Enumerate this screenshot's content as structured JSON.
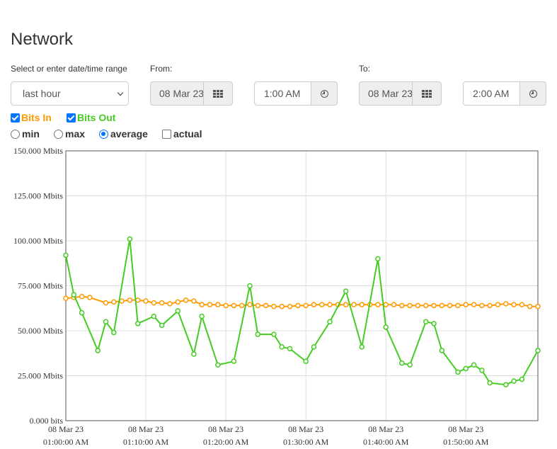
{
  "page": {
    "title": "Network"
  },
  "range": {
    "label": "Select or enter date/time range",
    "selected": "last hour",
    "from_label": "From:",
    "from_date": "08 Mar 23",
    "from_time": "1:00 AM",
    "to_label": "To:",
    "to_date": "08 Mar 23",
    "to_time": "2:00 AM"
  },
  "toggles": {
    "bits_in": "Bits In",
    "bits_out": "Bits Out",
    "bits_in_color": "#ff9900",
    "bits_out_color": "#44cc22"
  },
  "modes": {
    "min": "min",
    "max": "max",
    "average": "average",
    "actual": "actual",
    "selected": "average"
  },
  "icons": {
    "date": "calendar-grid-icon",
    "time": "clock-icon"
  },
  "chart_data": {
    "type": "line",
    "title": "",
    "xlabel": "",
    "ylabel": "",
    "ylim": [
      0,
      150
    ],
    "y_unit": "Mbits",
    "yticks": [
      "0.000 bits",
      "25.000 Mbits",
      "50.000 Mbits",
      "75.000 Mbits",
      "100.000 Mbits",
      "125.000 Mbits",
      "150.000 Mbits"
    ],
    "xticks": [
      {
        "date": "08 Mar 23",
        "time": "01:00:00 AM",
        "minute": 0
      },
      {
        "date": "08 Mar 23",
        "time": "01:10:00 AM",
        "minute": 10
      },
      {
        "date": "08 Mar 23",
        "time": "01:20:00 AM",
        "minute": 20
      },
      {
        "date": "08 Mar 23",
        "time": "01:30:00 AM",
        "minute": 30
      },
      {
        "date": "08 Mar 23",
        "time": "01:40:00 AM",
        "minute": 40
      },
      {
        "date": "08 Mar 23",
        "time": "01:50:00 AM",
        "minute": 50
      }
    ],
    "xlim": [
      0,
      59
    ],
    "grid": true,
    "series": [
      {
        "name": "Bits In",
        "color": "#ff9900",
        "points": [
          [
            0,
            68
          ],
          [
            1,
            68.5
          ],
          [
            2,
            69
          ],
          [
            3,
            68.5
          ],
          [
            5,
            65.5
          ],
          [
            6,
            66
          ],
          [
            7,
            66.5
          ],
          [
            8,
            67
          ],
          [
            9,
            67
          ],
          [
            10,
            66.5
          ],
          [
            11,
            65.5
          ],
          [
            12,
            65.5
          ],
          [
            13,
            65
          ],
          [
            14,
            66
          ],
          [
            15,
            67
          ],
          [
            16,
            66.5
          ],
          [
            17,
            64.5
          ],
          [
            18,
            64.5
          ],
          [
            19,
            64.5
          ],
          [
            20,
            64
          ],
          [
            21,
            64
          ],
          [
            22,
            64
          ],
          [
            23,
            64.5
          ],
          [
            24,
            64
          ],
          [
            25,
            64
          ],
          [
            26,
            63.5
          ],
          [
            27,
            63.5
          ],
          [
            28,
            63.5
          ],
          [
            29,
            64
          ],
          [
            30,
            64
          ],
          [
            31,
            64.5
          ],
          [
            32,
            64.5
          ],
          [
            33,
            64.5
          ],
          [
            34,
            64.5
          ],
          [
            35,
            64.5
          ],
          [
            36,
            64.5
          ],
          [
            37,
            64.5
          ],
          [
            38,
            64.5
          ],
          [
            39,
            64.5
          ],
          [
            40,
            64.5
          ],
          [
            41,
            64.5
          ],
          [
            42,
            64
          ],
          [
            43,
            64
          ],
          [
            44,
            64
          ],
          [
            45,
            64
          ],
          [
            46,
            64
          ],
          [
            47,
            64
          ],
          [
            48,
            64
          ],
          [
            49,
            64
          ],
          [
            50,
            64.5
          ],
          [
            51,
            64.5
          ],
          [
            52,
            64
          ],
          [
            53,
            64
          ],
          [
            54,
            64.5
          ],
          [
            55,
            65
          ],
          [
            56,
            64.5
          ],
          [
            57,
            64.5
          ],
          [
            58,
            63.5
          ],
          [
            59,
            63.5
          ]
        ]
      },
      {
        "name": "Bits Out",
        "color": "#44cc22",
        "points": [
          [
            0,
            92
          ],
          [
            1,
            70
          ],
          [
            2,
            60
          ],
          [
            4,
            39
          ],
          [
            5,
            55
          ],
          [
            6,
            49
          ],
          [
            8,
            101
          ],
          [
            9,
            54
          ],
          [
            11,
            58
          ],
          [
            12,
            53
          ],
          [
            14,
            61
          ],
          [
            16,
            37
          ],
          [
            17,
            58
          ],
          [
            19,
            31
          ],
          [
            21,
            33
          ],
          [
            23,
            75
          ],
          [
            24,
            48
          ],
          [
            26,
            48
          ],
          [
            27,
            41
          ],
          [
            28,
            40
          ],
          [
            30,
            33
          ],
          [
            31,
            41
          ],
          [
            33,
            55
          ],
          [
            35,
            72
          ],
          [
            37,
            41
          ],
          [
            39,
            90
          ],
          [
            40,
            52
          ],
          [
            42,
            32
          ],
          [
            43,
            31
          ],
          [
            45,
            55
          ],
          [
            46,
            54
          ],
          [
            47,
            39
          ],
          [
            49,
            27
          ],
          [
            50,
            29
          ],
          [
            51,
            31
          ],
          [
            52,
            28
          ],
          [
            53,
            21
          ],
          [
            55,
            20
          ],
          [
            56,
            22
          ],
          [
            57,
            23
          ],
          [
            59,
            39
          ]
        ]
      }
    ]
  }
}
